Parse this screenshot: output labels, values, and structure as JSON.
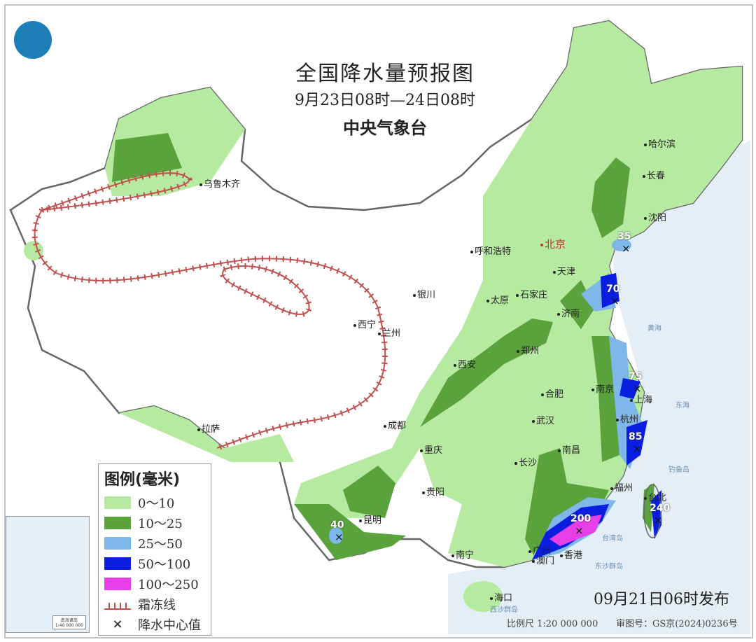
{
  "header": {
    "title": "全国降水量预报图",
    "period": "9月23日08时—24日08时",
    "publisher": "中央气象台",
    "logo": "cma-logo"
  },
  "legend": {
    "title": "图例(毫米)",
    "items": [
      {
        "label": "0～10",
        "color": "#b6eaa0"
      },
      {
        "label": "10～25",
        "color": "#5aa33c"
      },
      {
        "label": "25～50",
        "color": "#7fb7ea"
      },
      {
        "label": "50～100",
        "color": "#0a1ee0"
      },
      {
        "label": "100～250",
        "color": "#e83ee8"
      }
    ],
    "frost_line": "霜冻线",
    "frost_color": "#c0504d",
    "center_mark": "降水中心值",
    "center_symbol": "×"
  },
  "cities": [
    "乌鲁木齐",
    "哈尔滨",
    "长春",
    "沈阳",
    "呼和浩特",
    "北京",
    "天津",
    "石家庄",
    "太原",
    "济南",
    "银川",
    "西宁",
    "兰州",
    "郑州",
    "西安",
    "合肥",
    "南京",
    "上海",
    "杭州",
    "武汉",
    "成都",
    "重庆",
    "拉萨",
    "南昌",
    "长沙",
    "福州",
    "台北",
    "贵阳",
    "昆明",
    "南宁",
    "广州",
    "澳门",
    "香港",
    "海口"
  ],
  "seas": [
    "黄海",
    "东海",
    "钓鱼岛",
    "台湾岛",
    "东沙群岛",
    "西沙群岛"
  ],
  "rain_centers": [
    "35",
    "70",
    "75",
    "85",
    "200",
    "240",
    "40"
  ],
  "inset": {
    "title": "南海诸岛",
    "scale": "1:40 000 000"
  },
  "footer": {
    "published": "09月21日06时发布",
    "scale": "比例尺 1:20 000 000",
    "review_number": "审图号：GS京(2024)0236号"
  }
}
